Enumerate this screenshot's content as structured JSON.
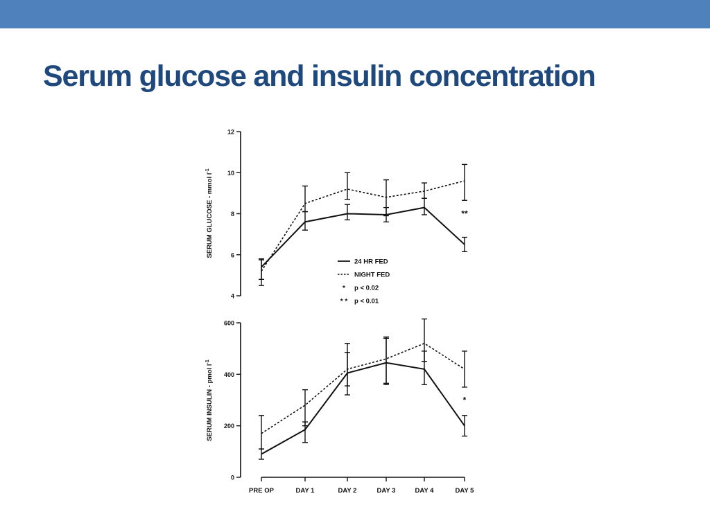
{
  "slide": {
    "title": "Serum glucose and insulin concentration",
    "band_color": "#4f81bd",
    "title_color": "#1f497d"
  },
  "chart_data": [
    {
      "type": "line",
      "ylabel": "SERUM GLUCOSE - mmol l",
      "ylabel_superscript": "-1",
      "ylim": [
        4,
        12
      ],
      "yticks": [
        4,
        6,
        8,
        10,
        12
      ],
      "categories": [
        "PRE OP",
        "DAY 1",
        "DAY 2",
        "DAY 3",
        "DAY 4",
        "DAY 5"
      ],
      "series": [
        {
          "name": "24 HR FED",
          "style": "solid",
          "values": [
            5.4,
            7.6,
            8.0,
            7.95,
            8.3,
            6.5
          ],
          "err_low": [
            0.6,
            0.4,
            0.3,
            0.35,
            0.35,
            0.35
          ],
          "err_high": [
            0.35,
            0.5,
            0.45,
            0.35,
            0.45,
            0.35
          ]
        },
        {
          "name": "NIGHT FED",
          "style": "dotted",
          "values": [
            5.2,
            8.5,
            9.2,
            8.8,
            9.1,
            9.6
          ],
          "err_low": [
            0.7,
            0.4,
            0.5,
            0.9,
            0.35,
            0.95
          ],
          "err_high": [
            0.6,
            0.85,
            0.8,
            0.85,
            0.4,
            0.8
          ]
        }
      ],
      "annotations": [
        {
          "category": "DAY 5",
          "text": "**",
          "y": 8.0
        }
      ],
      "legend": {
        "placement": "lower-right",
        "items": [
          {
            "symbol": "solid",
            "label": "24 HR FED"
          },
          {
            "symbol": "dotted",
            "label": "NIGHT FED"
          },
          {
            "symbol": "*",
            "label": "p < 0.02"
          },
          {
            "symbol": "* *",
            "label": "p < 0.01"
          }
        ]
      }
    },
    {
      "type": "line",
      "ylabel": "SERUM INSULIN - pmol l",
      "ylabel_superscript": "-1",
      "ylim": [
        0,
        600
      ],
      "yticks": [
        0,
        200,
        400,
        600
      ],
      "categories": [
        "PRE OP",
        "DAY 1",
        "DAY 2",
        "DAY 3",
        "DAY 4",
        "DAY 5"
      ],
      "series": [
        {
          "name": "24 HR FED",
          "style": "solid",
          "values": [
            90,
            185,
            405,
            445,
            420,
            200
          ],
          "err_low": [
            20,
            50,
            50,
            80,
            60,
            40
          ],
          "err_high": [
            20,
            30,
            80,
            100,
            70,
            40
          ]
        },
        {
          "name": "NIGHT FED",
          "style": "dotted",
          "values": [
            170,
            280,
            420,
            460,
            520,
            420
          ],
          "err_low": [
            60,
            80,
            100,
            100,
            70,
            70
          ],
          "err_high": [
            70,
            60,
            100,
            80,
            95,
            70
          ]
        }
      ],
      "annotations": [
        {
          "category": "DAY 5",
          "text": "*",
          "y": 300
        }
      ]
    }
  ]
}
